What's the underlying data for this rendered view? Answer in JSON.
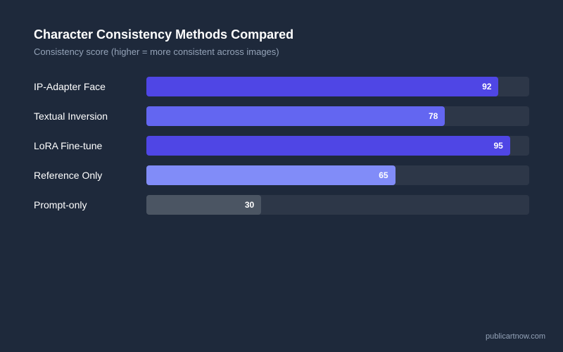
{
  "chart_data": {
    "type": "bar",
    "orientation": "horizontal",
    "title": "Character Consistency Methods Compared",
    "subtitle": "Consistency score (higher = more consistent across images)",
    "categories": [
      "IP-Adapter Face",
      "Textual Inversion",
      "LoRA Fine-tune",
      "Reference Only",
      "Prompt-only"
    ],
    "values": [
      92,
      78,
      95,
      65,
      30
    ],
    "xlim": [
      0,
      100
    ],
    "grid": false,
    "legend": "none",
    "bar_colors": [
      "#4f46e5",
      "#6366f1",
      "#4f46e5",
      "#818cf8",
      "#4b5563"
    ],
    "track_color": "#2d3748"
  },
  "footer": {
    "text": "publicartnow.com"
  }
}
